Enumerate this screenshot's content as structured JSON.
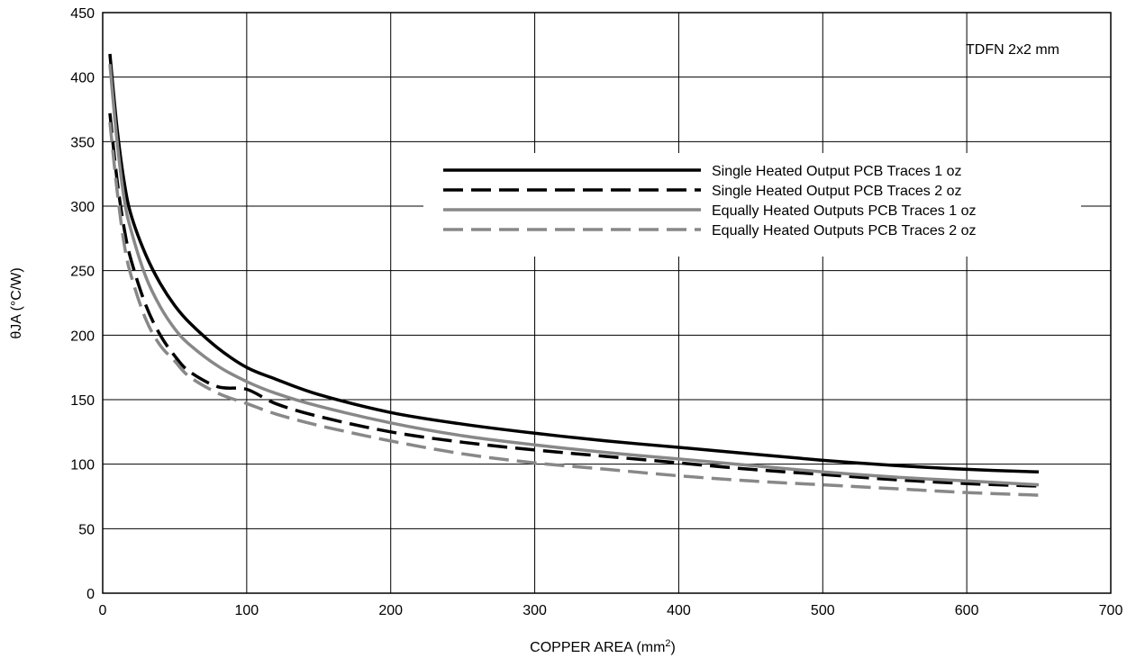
{
  "chart_data": {
    "type": "line",
    "title": "",
    "xlabel": "COPPER AREA (mm",
    "xlabel_superscript": "2",
    "xlabel_suffix": ")",
    "ylabel": "θJA (°C/W)",
    "xlim": [
      0,
      700
    ],
    "ylim": [
      0,
      450
    ],
    "xticks": [
      0,
      100,
      200,
      300,
      400,
      500,
      600,
      700
    ],
    "yticks": [
      0,
      50,
      100,
      150,
      200,
      250,
      300,
      350,
      400,
      450
    ],
    "grid": true,
    "legend_position": "top-right",
    "annotation": "TDFN 2x2 mm",
    "series": [
      {
        "name": "Single Heated Output PCB Traces 1 oz",
        "color": "#000000",
        "dash": "solid",
        "x": [
          5,
          10,
          15,
          20,
          30,
          40,
          50,
          60,
          80,
          100,
          120,
          150,
          200,
          250,
          300,
          350,
          400,
          450,
          500,
          550,
          600,
          650
        ],
        "y": [
          418,
          360,
          318,
          292,
          262,
          240,
          223,
          210,
          190,
          175,
          166,
          154,
          140,
          131,
          124,
          118,
          113,
          108,
          103,
          99,
          96,
          94
        ]
      },
      {
        "name": "Single Heated Output PCB Traces 2 oz",
        "color": "#000000",
        "dash": "dashed",
        "x": [
          5,
          10,
          15,
          20,
          30,
          40,
          50,
          60,
          80,
          100,
          120,
          150,
          200,
          250,
          300,
          350,
          400,
          450,
          500,
          550,
          600,
          650
        ],
        "y": [
          372,
          320,
          282,
          257,
          223,
          200,
          184,
          172,
          160,
          158,
          147,
          137,
          125,
          117,
          111,
          106,
          101,
          96,
          92,
          88,
          85,
          83
        ]
      },
      {
        "name": "Equally Heated Outputs PCB Traces 1 oz",
        "color": "#888888",
        "dash": "solid",
        "x": [
          5,
          10,
          15,
          20,
          30,
          40,
          50,
          60,
          80,
          100,
          120,
          150,
          200,
          250,
          300,
          350,
          400,
          450,
          500,
          550,
          600,
          650
        ],
        "y": [
          410,
          350,
          305,
          280,
          245,
          222,
          205,
          193,
          176,
          164,
          155,
          145,
          132,
          122,
          115,
          109,
          104,
          99,
          94,
          90,
          87,
          84
        ]
      },
      {
        "name": "Equally Heated Outputs PCB Traces 2 oz",
        "color": "#888888",
        "dash": "dashed",
        "x": [
          5,
          10,
          15,
          20,
          30,
          40,
          50,
          60,
          80,
          100,
          120,
          150,
          200,
          250,
          300,
          350,
          400,
          450,
          500,
          550,
          600,
          650
        ],
        "y": [
          365,
          312,
          270,
          245,
          212,
          192,
          180,
          168,
          155,
          147,
          139,
          130,
          118,
          108,
          101,
          96,
          91,
          87,
          84,
          81,
          78,
          76
        ]
      }
    ]
  }
}
